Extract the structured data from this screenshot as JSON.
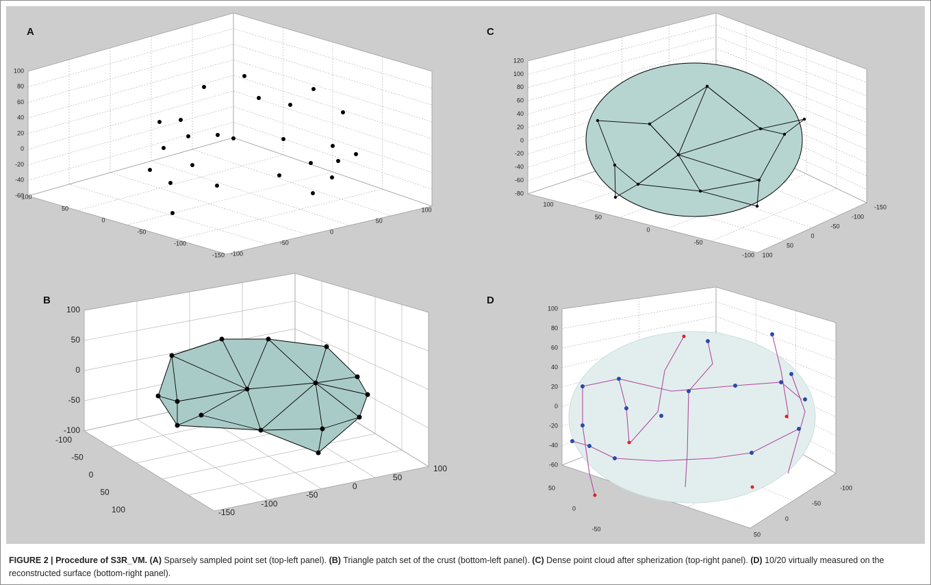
{
  "figure": {
    "panels": [
      {
        "label": "A",
        "z_ticks": [
          "100",
          "80",
          "60",
          "40",
          "20",
          "0",
          "-20",
          "-40",
          "-60"
        ],
        "left_ticks": [
          "100",
          "50",
          "0",
          "-50",
          "-100",
          "-150"
        ],
        "right_ticks": [
          "-100",
          "-50",
          "0",
          "50",
          "100"
        ]
      },
      {
        "label": "B",
        "z_ticks": [
          "100",
          "50",
          "0",
          "-50",
          "-100"
        ],
        "left_ticks": [
          "-100",
          "-50",
          "0",
          "50",
          "100"
        ],
        "right_ticks": [
          "-150",
          "-100",
          "-50",
          "0",
          "50",
          "100"
        ]
      },
      {
        "label": "C",
        "z_ticks": [
          "120",
          "100",
          "80",
          "60",
          "40",
          "20",
          "0",
          "-20",
          "-40",
          "-60",
          "-80"
        ],
        "left_ticks": [
          "100",
          "50",
          "0",
          "-50",
          "-100"
        ],
        "right_ticks": [
          "100",
          "50",
          "0",
          "-50",
          "-100",
          "-150"
        ]
      },
      {
        "label": "D",
        "z_ticks": [
          "100",
          "80",
          "60",
          "40",
          "20",
          "0",
          "-20",
          "-40",
          "-60"
        ],
        "left_ticks": [
          "50",
          "0",
          "-50"
        ],
        "right_ticks": [
          "50",
          "0",
          "-50",
          "-100"
        ]
      }
    ],
    "caption": {
      "heading": "FIGURE 2 | Procedure of S3R_VM.",
      "parts": [
        {
          "label": "(A)",
          "text": "Sparsely sampled point set (top-left panel)."
        },
        {
          "label": "(B)",
          "text": "Triangle patch set of the crust (bottom-left panel)."
        },
        {
          "label": "(C)",
          "text": "Dense point cloud after spherization (top-right panel)."
        },
        {
          "label": "(D)",
          "text": "10/20 virtually measured on the reconstructed surface (bottom-right panel)."
        }
      ]
    }
  }
}
